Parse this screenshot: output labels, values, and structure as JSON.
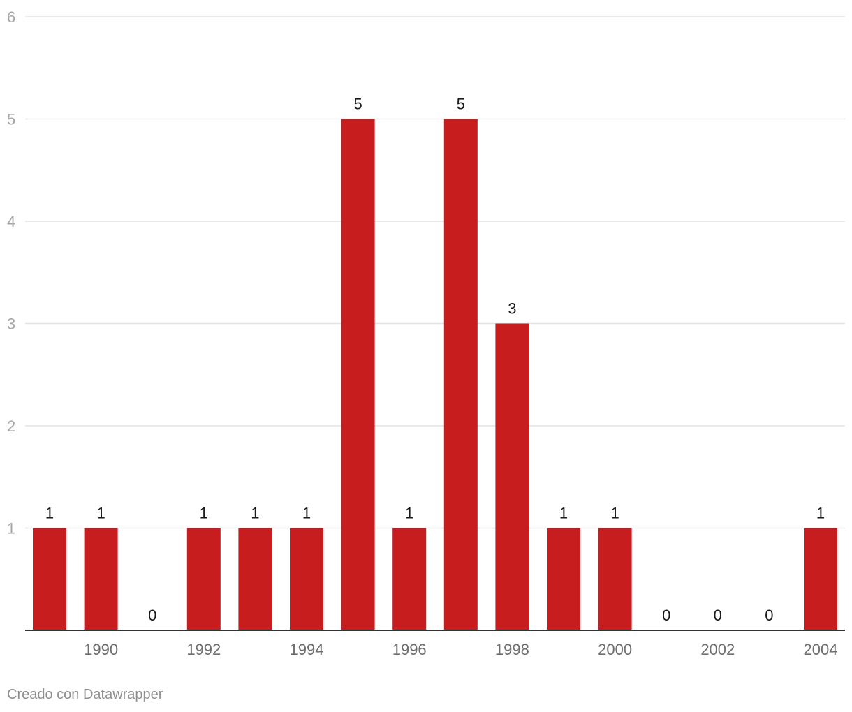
{
  "chart_data": {
    "type": "bar",
    "title": "",
    "xlabel": "",
    "ylabel": "",
    "categories": [
      "1989",
      "1990",
      "1991",
      "1992",
      "1993",
      "1994",
      "1995",
      "1996",
      "1997",
      "1998",
      "1999",
      "2000",
      "2001",
      "2002",
      "2003",
      "2004"
    ],
    "values": [
      1,
      1,
      0,
      1,
      1,
      1,
      5,
      1,
      5,
      3,
      1,
      1,
      0,
      0,
      0,
      1
    ],
    "x_tick_labels": [
      "1990",
      "1992",
      "1994",
      "1996",
      "1998",
      "2000",
      "2002",
      "2004"
    ],
    "y_ticks": [
      1,
      2,
      3,
      4,
      5,
      6
    ],
    "ylim": [
      0,
      6
    ],
    "grid": true,
    "bar_color": "#c71d1f",
    "data_labels": true
  },
  "credit": "Creado con Datawrapper"
}
